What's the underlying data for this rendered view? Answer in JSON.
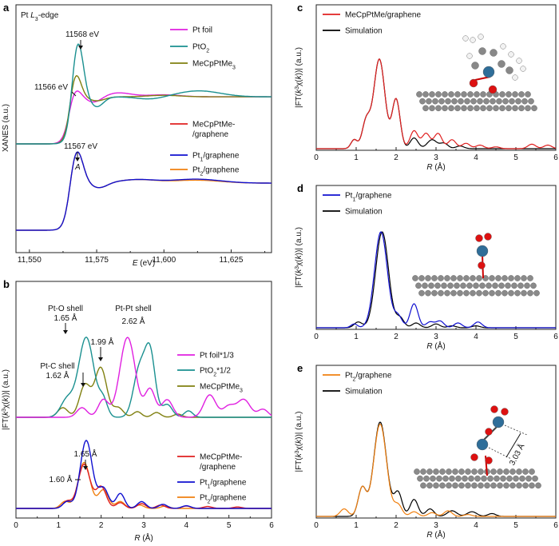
{
  "panels": {
    "a": {
      "label": "a",
      "edge_title": "Pt L3-edge",
      "ylabel": "XANES (a.u.)",
      "xlabel": "E (eV)"
    },
    "b": {
      "label": "b",
      "ylabel": "|FT(k3χ(k))| (a.u.)",
      "xlabel": "R (Å)"
    },
    "c": {
      "label": "c",
      "ylabel": "|FT(k3χ(k))| (a.u.)",
      "xlabel": "R (Å)"
    },
    "d": {
      "label": "d",
      "ylabel": "|FT(k3χ(k))| (a.u.)",
      "xlabel": "R (Å)"
    },
    "e": {
      "label": "e",
      "ylabel": "|FT(k3χ(k))| (a.u.)",
      "xlabel": "R (Å)"
    }
  },
  "annotations": {
    "a": [
      "11568 eV",
      "11566 eV",
      "11567 eV",
      "A"
    ],
    "b": [
      "Pt-O shell",
      "1.65 Å",
      "Pt-Pt shell",
      "2.62 Å",
      "1.99 Å",
      "Pt-C shell",
      "1.62 Å",
      "1.65 Å",
      "1.60 Å"
    ],
    "e": [
      "3.03 Å"
    ]
  },
  "chart_data": [
    {
      "panel": "a",
      "type": "line",
      "xlabel": "E (eV)",
      "ylabel": "XANES (a.u.)",
      "xlim": [
        11545,
        11640
      ],
      "xticks": [
        "11,550",
        "11,575",
        "11,600",
        "11,625"
      ],
      "series": [
        {
          "name": "Pt foil",
          "color": "#e020e0"
        },
        {
          "name": "PtO2",
          "color": "#1a9090"
        },
        {
          "name": "MeCpPtMe3",
          "color": "#808010"
        },
        {
          "name": "MeCpPtMe-/graphene",
          "color": "#e02020"
        },
        {
          "name": "Pt1/graphene",
          "color": "#1010d0"
        },
        {
          "name": "Pt2/graphene",
          "color": "#f08010"
        }
      ],
      "peaks_eV": {
        "PtO2": 11568,
        "Pt foil": 11566,
        "Pt1/graphene": 11567
      }
    },
    {
      "panel": "b",
      "type": "line",
      "xlabel": "R (Å)",
      "ylabel": "|FT(k3χ(k))| (a.u.)",
      "xlim": [
        0,
        6
      ],
      "xticks": [
        "0",
        "1",
        "2",
        "3",
        "4",
        "5",
        "6"
      ],
      "series": [
        {
          "name": "Pt foil*1/3",
          "color": "#e020e0"
        },
        {
          "name": "PtO2*1/2",
          "color": "#1a9090"
        },
        {
          "name": "MeCpPtMe3",
          "color": "#808010"
        },
        {
          "name": "MeCpPtMe-/graphene",
          "color": "#e02020"
        },
        {
          "name": "Pt1/graphene",
          "color": "#1010d0"
        },
        {
          "name": "Pt2/graphene",
          "color": "#f08010"
        }
      ],
      "peaks_A": {
        "Pt-O shell": 1.65,
        "Pt-Pt shell": 2.62,
        "Pt-C shell": 1.62,
        "MeCpPtMe3 second": 1.99,
        "Pt1/graphene": 1.65,
        "Pt2/graphene": 1.6
      }
    },
    {
      "panel": "c",
      "type": "line",
      "xlabel": "R (Å)",
      "ylabel": "|FT(k3χ(k))| (a.u.)",
      "xlim": [
        0,
        6
      ],
      "xticks": [
        "0",
        "1",
        "2",
        "3",
        "4",
        "5",
        "6"
      ],
      "series": [
        {
          "name": "MeCpPtMe/graphene",
          "color": "#e02020"
        },
        {
          "name": "Simulation",
          "color": "#000000"
        }
      ]
    },
    {
      "panel": "d",
      "type": "line",
      "xlabel": "R (Å)",
      "ylabel": "|FT(k3χ(k))| (a.u.)",
      "xlim": [
        0,
        6
      ],
      "xticks": [
        "0",
        "1",
        "2",
        "3",
        "4",
        "5",
        "6"
      ],
      "series": [
        {
          "name": "Pt1/graphene",
          "color": "#1010d0"
        },
        {
          "name": "Simulation",
          "color": "#000000"
        }
      ]
    },
    {
      "panel": "e",
      "type": "line",
      "xlabel": "R (Å)",
      "ylabel": "|FT(k3χ(k))| (a.u.)",
      "xlim": [
        0,
        6
      ],
      "xticks": [
        "0",
        "1",
        "2",
        "3",
        "4",
        "5",
        "6"
      ],
      "series": [
        {
          "name": "Pt2/graphene",
          "color": "#f08010"
        },
        {
          "name": "Simulation",
          "color": "#000000"
        }
      ]
    }
  ]
}
